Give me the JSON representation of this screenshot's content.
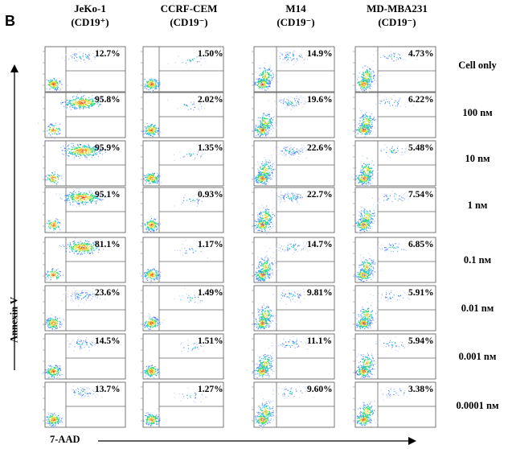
{
  "panel_letter": "B",
  "columns": [
    {
      "name": "JeKo-1",
      "marker": "(CD19⁺)"
    },
    {
      "name": "CCRF-CEM",
      "marker": "(CD19⁻)"
    },
    {
      "name": "M14",
      "marker": "(CD19⁻)"
    },
    {
      "name": "MD-MBA231",
      "marker": "(CD19⁻)"
    }
  ],
  "rows": [
    "Cell only",
    "100 nᴍ",
    "10 nᴍ",
    "1 nᴍ",
    "0.1 nᴍ",
    "0.01 nᴍ",
    "0.001 nᴍ",
    "0.0001 nᴍ"
  ],
  "axes": {
    "y_label": "Annexin V",
    "x_label": "7-AAD"
  },
  "chart_data": {
    "type": "table",
    "series": [
      {
        "name": "JeKo-1",
        "values": [
          "12.7%",
          "95.8%",
          "95.9%",
          "95.1%",
          "81.1%",
          "23.6%",
          "14.5%",
          "13.7%"
        ]
      },
      {
        "name": "CCRF-CEM",
        "values": [
          "1.50%",
          "2.02%",
          "1.35%",
          "0.93%",
          "1.17%",
          "1.49%",
          "1.51%",
          "1.27%"
        ]
      },
      {
        "name": "M14",
        "values": [
          "14.9%",
          "19.6%",
          "22.6%",
          "22.7%",
          "14.7%",
          "9.81%",
          "11.1%",
          "9.60%"
        ]
      },
      {
        "name": "MD-MBA231",
        "values": [
          "4.73%",
          "6.22%",
          "5.48%",
          "7.54%",
          "6.85%",
          "5.91%",
          "5.94%",
          "3.38%"
        ]
      }
    ]
  }
}
